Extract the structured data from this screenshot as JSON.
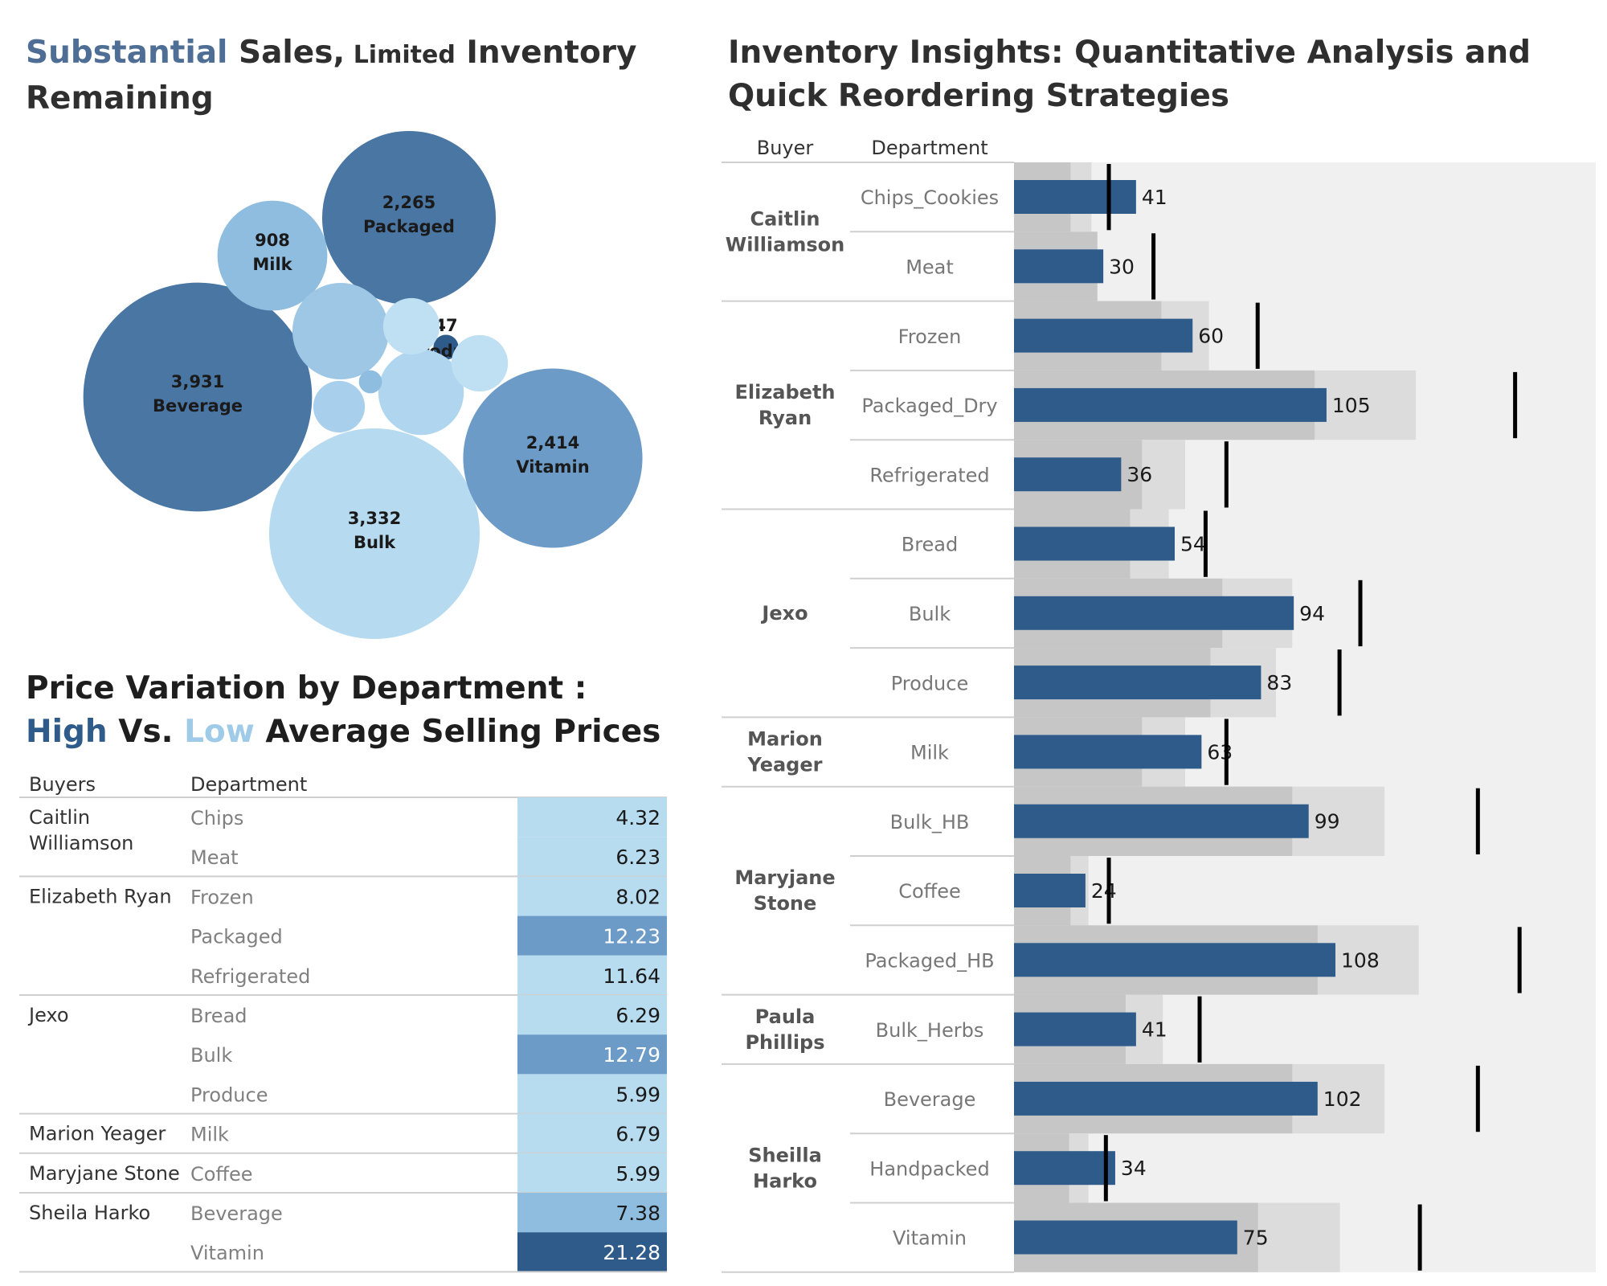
{
  "bubble_title": {
    "parts": [
      {
        "text": "Substantial",
        "color": "#4e6e95",
        "small": false
      },
      {
        "text": " Sales,",
        "color": "#2f2f2f",
        "small": false
      },
      {
        "text": " Limited",
        "color": "#2f2f2f",
        "small": true
      },
      {
        "text": " Inventory Remaining",
        "color": "#2f2f2f",
        "small": false
      }
    ]
  },
  "price_title": {
    "parts": [
      {
        "text": "Price Variation by Department : ",
        "color": "#1e1e1e"
      },
      {
        "text": "High",
        "color": "#2e5b8a"
      },
      {
        "text": " Vs. ",
        "color": "#1e1e1e"
      },
      {
        "text": "Low",
        "color": "#9fcbe8"
      },
      {
        "text": " Average Selling Prices",
        "color": "#1e1e1e"
      }
    ]
  },
  "inventory_title": "Inventory Insights: Quantitative Analysis and Quick Reordering Strategies",
  "chart_data": [
    {
      "type": "bubble",
      "bubbles": [
        {
          "label": "Beverage",
          "value": 3931,
          "value_label": "3,931",
          "color": "#4a76a3",
          "show_label": true
        },
        {
          "label": "Bulk",
          "value": 3332,
          "value_label": "3,332",
          "color": "#b6daef",
          "show_label": true
        },
        {
          "label": "Vitamin",
          "value": 2414,
          "value_label": "2,414",
          "color": "#6b9bc6",
          "show_label": true
        },
        {
          "label": "Packaged",
          "value": 2265,
          "value_label": "2,265",
          "color": "#4a76a3",
          "show_label": true
        },
        {
          "label": "Milk",
          "value": 908,
          "value_label": "908",
          "color": "#8fbde0",
          "show_label": true
        },
        {
          "label": "Produce",
          "value": 47,
          "value_label": "47",
          "color": "#2e5b8a",
          "show_label": true
        },
        {
          "label": "",
          "value": 700,
          "value_label": "",
          "color": "#9dc7e5",
          "show_label": false
        },
        {
          "label": "",
          "value": 550,
          "value_label": "",
          "color": "#b0d5ee",
          "show_label": false
        },
        {
          "label": "",
          "value": 240,
          "value_label": "",
          "color": "#bfe0f3",
          "show_label": false
        },
        {
          "label": "",
          "value": 240,
          "value_label": "",
          "color": "#bfe0f3",
          "show_label": false
        },
        {
          "label": "",
          "value": 200,
          "value_label": "",
          "color": "#a8d0ec",
          "show_label": false
        },
        {
          "label": "",
          "value": 40,
          "value_label": "",
          "color": "#8fbde0",
          "show_label": false
        }
      ]
    },
    {
      "type": "table",
      "headers": {
        "buyer": "Buyers",
        "department": "Department"
      },
      "groups": [
        {
          "buyer": [
            "Caitlin",
            "Williamson"
          ],
          "rows": [
            {
              "department": "Chips",
              "value": "4.32",
              "color": "#b7dbef"
            },
            {
              "department": "Meat",
              "value": "6.23",
              "color": "#b7dbef"
            }
          ]
        },
        {
          "buyer": [
            "Elizabeth Ryan"
          ],
          "rows": [
            {
              "department": "Frozen",
              "value": "8.02",
              "color": "#b7dbef"
            },
            {
              "department": "Packaged",
              "value": "12.23",
              "color": "#6b9bc6"
            },
            {
              "department": "Refrigerated",
              "value": "11.64",
              "color": "#b7dbef"
            }
          ]
        },
        {
          "buyer": [
            "Jexo"
          ],
          "rows": [
            {
              "department": "Bread",
              "value": "6.29",
              "color": "#b7dbef"
            },
            {
              "department": "Bulk",
              "value": "12.79",
              "color": "#6b9bc6"
            },
            {
              "department": "Produce",
              "value": "5.99",
              "color": "#b7dbef"
            }
          ]
        },
        {
          "buyer": [
            "Marion Yeager"
          ],
          "rows": [
            {
              "department": "Milk",
              "value": "6.79",
              "color": "#b7dbef"
            }
          ]
        },
        {
          "buyer": [
            "Maryjane Stone"
          ],
          "rows": [
            {
              "department": "Coffee",
              "value": "5.99",
              "color": "#b7dbef"
            }
          ]
        },
        {
          "buyer": [
            "Sheila Harko"
          ],
          "rows": [
            {
              "department": "Beverage",
              "value": "7.38",
              "color": "#8fbde0"
            },
            {
              "department": "Vitamin",
              "value": "21.28",
              "color": "#2e5b8a"
            }
          ]
        }
      ]
    },
    {
      "type": "bar",
      "headers": {
        "buyer": "Buyer",
        "department": "Department"
      },
      "x_range": [
        0,
        200
      ],
      "groups": [
        {
          "buyer": [
            "Caitlin",
            "Williamson"
          ],
          "rows": [
            {
              "department": "Chips_Cookies",
              "value": 41,
              "band_dark": 38,
              "band_light": 52,
              "target": 64
            },
            {
              "department": "Meat",
              "value": 30,
              "band_dark": 56,
              "band_light": 56,
              "target": 94
            }
          ]
        },
        {
          "buyer": [
            "Elizabeth",
            "Ryan"
          ],
          "rows": [
            {
              "department": "Frozen",
              "value": 60,
              "band_dark": 99,
              "band_light": 131,
              "target": 164
            },
            {
              "department": "Packaged_Dry",
              "value": 105,
              "band_dark": 202,
              "band_light": 270,
              "target": 337
            },
            {
              "department": "Refrigerated",
              "value": 36,
              "band_dark": 86,
              "band_light": 115,
              "target": 143
            }
          ]
        },
        {
          "buyer": [
            "Jexo"
          ],
          "rows": [
            {
              "department": "Bread",
              "value": 54,
              "band_dark": 78,
              "band_light": 104,
              "target": 129
            },
            {
              "department": "Bulk",
              "value": 94,
              "band_dark": 140,
              "band_light": 187,
              "target": 233
            },
            {
              "department": "Produce",
              "value": 83,
              "band_dark": 132,
              "band_light": 176,
              "target": 219
            }
          ]
        },
        {
          "buyer": [
            "Marion",
            "Yeager"
          ],
          "rows": [
            {
              "department": "Milk",
              "value": 63,
              "band_dark": 86,
              "band_light": 115,
              "target": 143
            }
          ]
        },
        {
          "buyer": [
            "Maryjane",
            "Stone"
          ],
          "rows": [
            {
              "department": "Bulk_HB",
              "value": 99,
              "band_dark": 187,
              "band_light": 249,
              "target": 312
            },
            {
              "department": "Coffee",
              "value": 24,
              "band_dark": 38,
              "band_light": 50,
              "target": 64
            },
            {
              "department": "Packaged_HB",
              "value": 108,
              "band_dark": 204,
              "band_light": 272,
              "target": 340
            }
          ]
        },
        {
          "buyer": [
            "Paula",
            "Phillips"
          ],
          "rows": [
            {
              "department": "Bulk_Herbs",
              "value": 41,
              "band_dark": 75,
              "band_light": 100,
              "target": 125
            }
          ]
        },
        {
          "buyer": [
            "Sheilla",
            "Harko"
          ],
          "rows": [
            {
              "department": "Beverage",
              "value": 102,
              "band_dark": 187,
              "band_light": 249,
              "target": 312
            },
            {
              "department": "Handpacked",
              "value": 34,
              "band_dark": 37,
              "band_light": 50,
              "target": 62
            },
            {
              "department": "Vitamin",
              "value": 75,
              "band_dark": 164,
              "band_light": 219,
              "target": 273
            }
          ]
        }
      ]
    }
  ]
}
